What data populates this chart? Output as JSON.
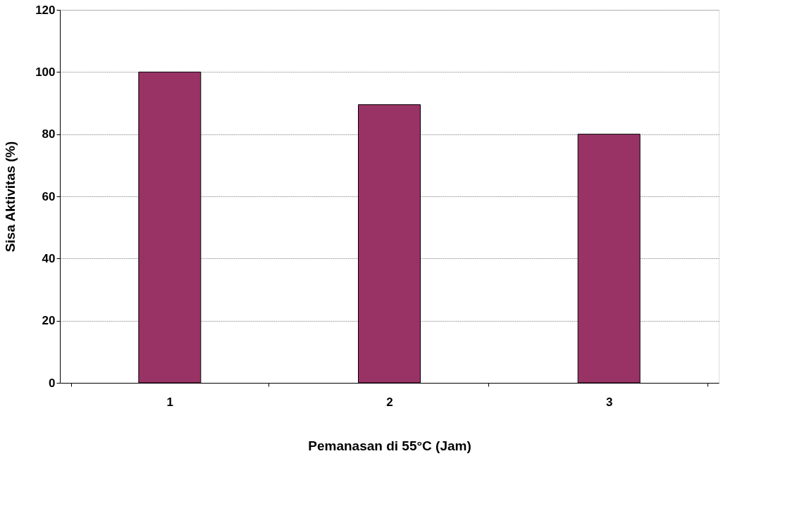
{
  "chart_data": {
    "type": "bar",
    "xlabel": "Pemanasan di 55°C (Jam)",
    "ylabel": "Sisa Aktivitas (%)",
    "categories": [
      "1",
      "2",
      "3"
    ],
    "series": [
      {
        "color": "#993366",
        "values": [
          100,
          89.5,
          80
        ]
      }
    ],
    "ylim": [
      0,
      120
    ],
    "yticks": [
      0,
      20,
      40,
      60,
      80,
      100,
      120
    ],
    "grid": "y",
    "legend": false
  }
}
